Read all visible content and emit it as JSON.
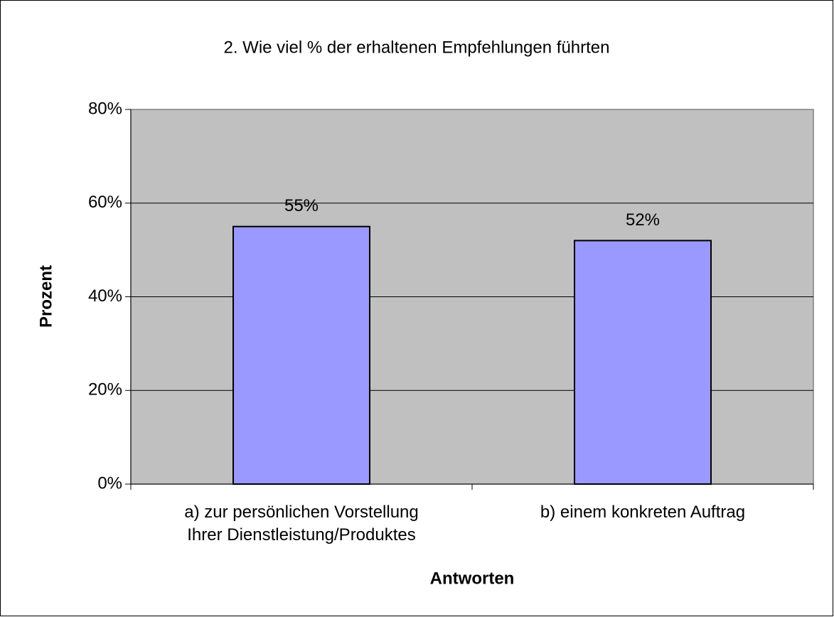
{
  "chart_data": {
    "type": "bar",
    "title": "2. Wie viel % der erhaltenen Empfehlungen führten",
    "x_label": "Antworten",
    "y_label": "Prozent",
    "categories": [
      "a) zur persönlichen Vorstellung\nIhrer Dienstleistung/Produktes",
      "b) einem konkreten Auftrag"
    ],
    "values": [
      55,
      52
    ],
    "value_labels": [
      "55%",
      "52%"
    ],
    "color": "#9999ff",
    "ylim": [
      0,
      80
    ],
    "yticks": [
      {
        "value": 0,
        "label": "0%"
      },
      {
        "value": 20,
        "label": "20%"
      },
      {
        "value": 40,
        "label": "40%"
      },
      {
        "value": 60,
        "label": "60%"
      },
      {
        "value": 80,
        "label": "80%"
      }
    ],
    "grid": true
  }
}
